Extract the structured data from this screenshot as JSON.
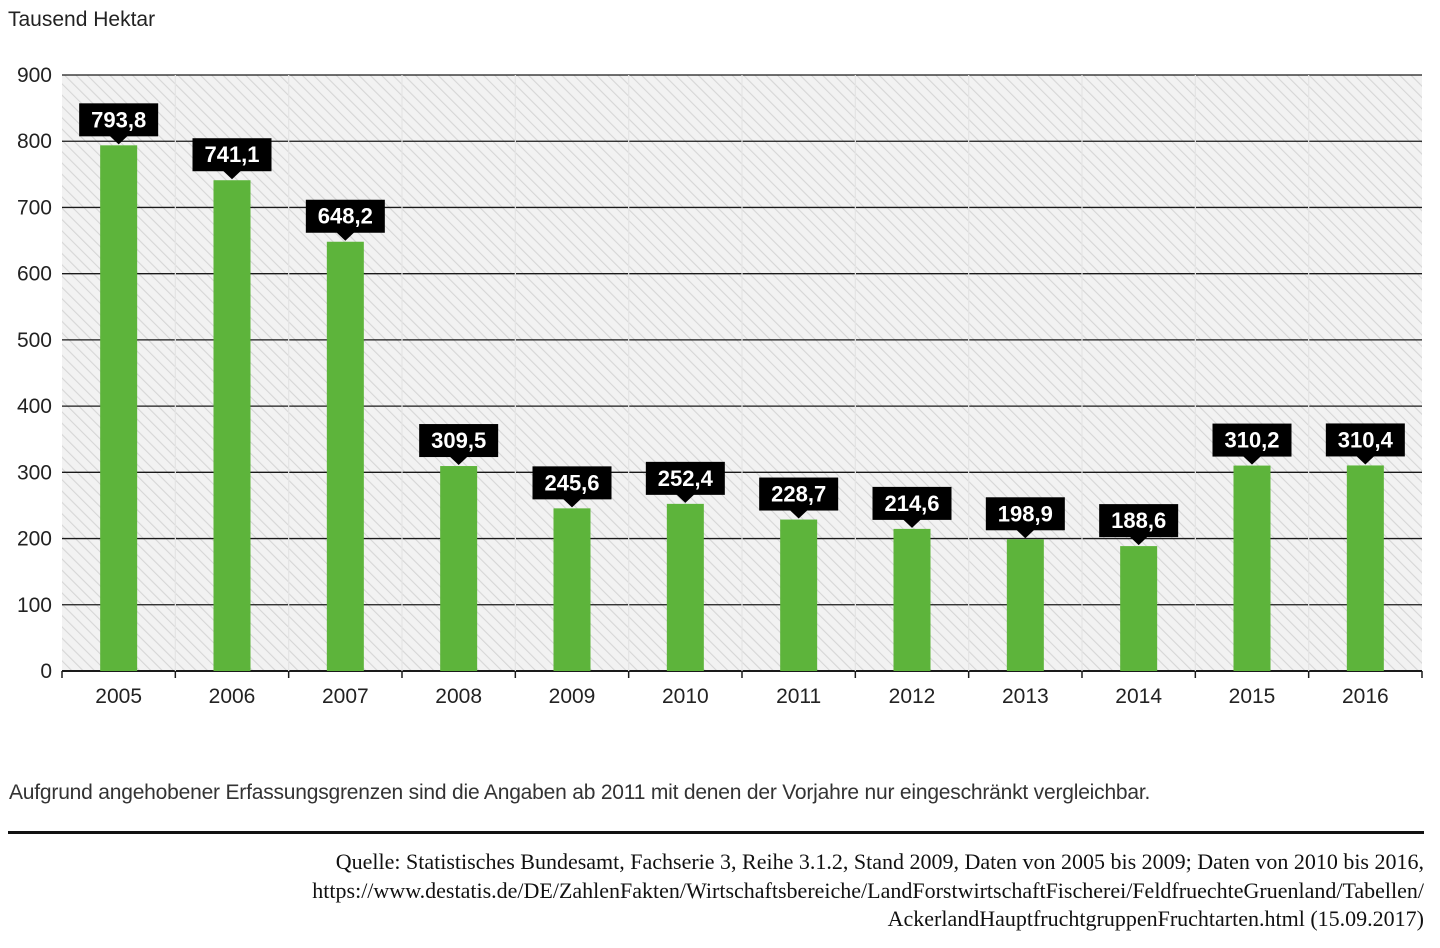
{
  "chart_data": {
    "type": "bar",
    "ylabel": "Tausend Hektar",
    "categories": [
      "2005",
      "2006",
      "2007",
      "2008",
      "2009",
      "2010",
      "2011",
      "2012",
      "2013",
      "2014",
      "2015",
      "2016"
    ],
    "values": [
      793.8,
      741.1,
      648.2,
      309.5,
      245.6,
      252.4,
      228.7,
      214.6,
      198.9,
      188.6,
      310.2,
      310.4
    ],
    "value_labels": [
      "793,8",
      "741,1",
      "648,2",
      "309,5",
      "245,6",
      "252,4",
      "228,7",
      "214,6",
      "198,9",
      "188,6",
      "310,2",
      "310,4"
    ],
    "ylim": [
      0,
      900
    ],
    "yticks": [
      0,
      100,
      200,
      300,
      400,
      500,
      600,
      700,
      800,
      900
    ],
    "grid": true,
    "bar_color": "#5db43b",
    "label_bg_color": "#000000",
    "label_text_color": "#ffffff"
  },
  "note": "Aufgrund angehobener Erfassungsgrenzen sind die Angaben ab 2011 mit denen der Vorjahre nur eingeschränkt vergleichbar.",
  "source": {
    "line1": "Quelle: Statistisches Bundesamt, Fachserie 3, Reihe 3.1.2, Stand 2009, Daten von 2005 bis 2009; Daten von 2010 bis 2016,",
    "line2": "https://www.destatis.de/DE/ZahlenFakten/Wirtschaftsbereiche/LandForstwirtschaftFischerei/FeldfruechteGruenland/Tabellen/",
    "line3": "AckerlandHauptfruchtgruppenFruchtarten.html (15.09.2017)"
  }
}
